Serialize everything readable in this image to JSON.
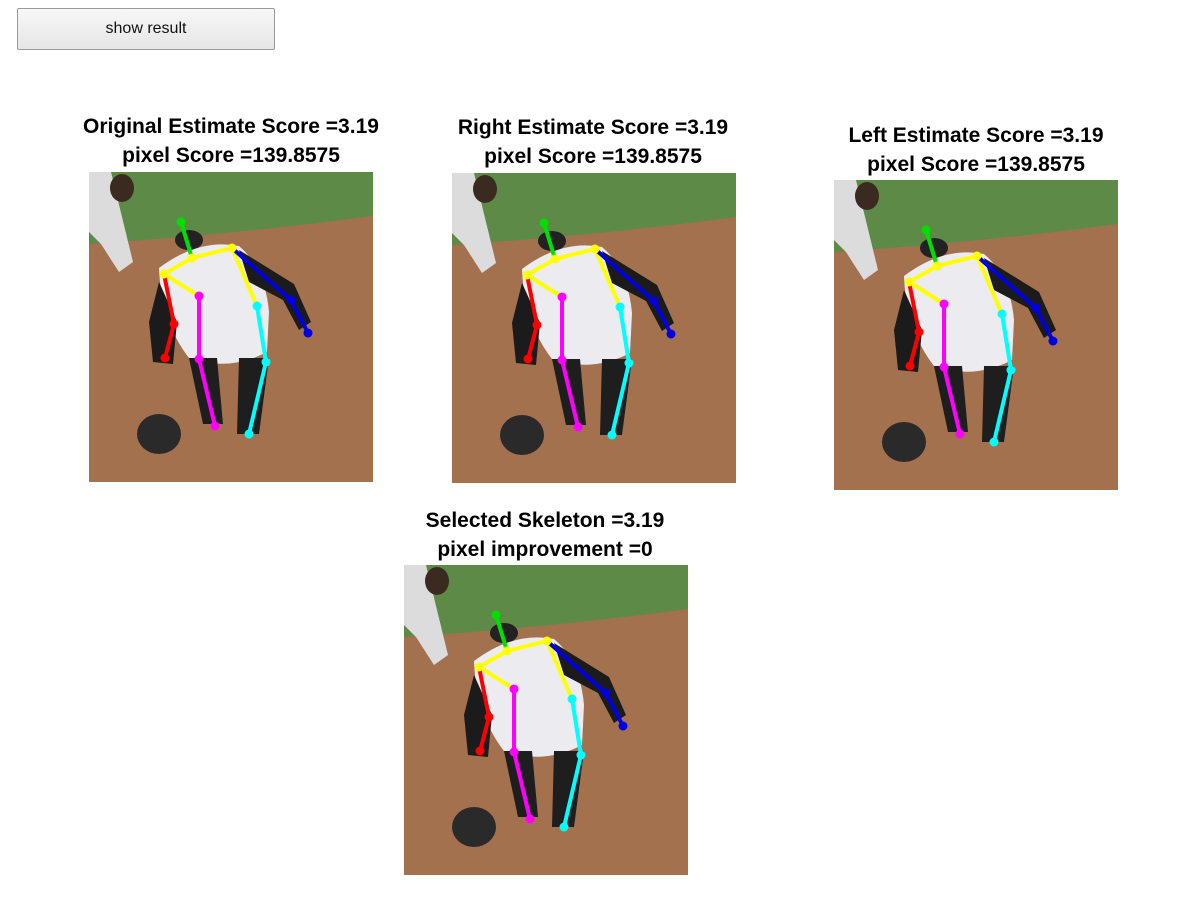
{
  "toolbar": {
    "show_result_label": "show result"
  },
  "panels": [
    {
      "line1": "Original Estimate Score =3.19",
      "line2": "pixel Score =139.8575"
    },
    {
      "line1": "Right Estimate Score =3.19",
      "line2": "pixel Score =139.8575"
    },
    {
      "line1": "Left Estimate Score =3.19",
      "line2": "pixel Score =139.8575"
    },
    {
      "line1": "Selected Skeleton =3.19",
      "line2": "pixel improvement =0"
    }
  ],
  "colors": {
    "head": "#00e000",
    "torso": "#ffff00",
    "right_arm": "#ff0000",
    "left_arm": "#0000e0",
    "right_leg": "#ff00ff",
    "left_leg": "#00ffff",
    "grass": "#5e8a47",
    "dirt": "#a4714f"
  }
}
